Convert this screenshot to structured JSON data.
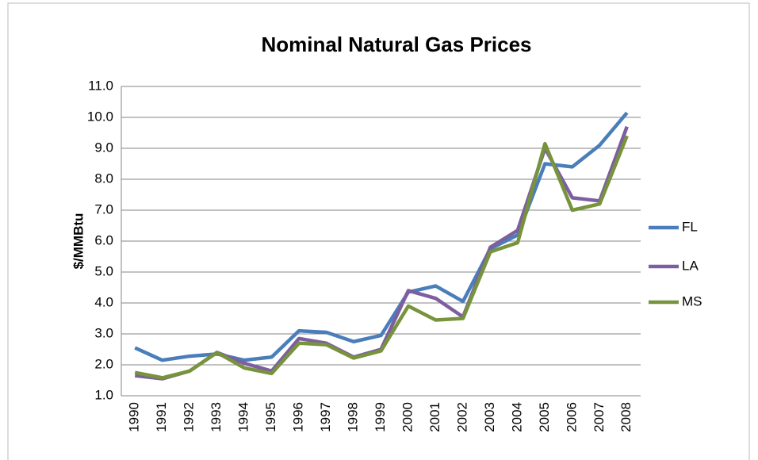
{
  "chart_data": {
    "type": "line",
    "title": "Nominal Natural Gas Prices",
    "y_label": "$/MMBtu",
    "categories": [
      "1990",
      "1991",
      "1992",
      "1993",
      "1994",
      "1995",
      "1996",
      "1997",
      "1998",
      "1999",
      "2000",
      "2001",
      "2002",
      "2003",
      "2004",
      "2005",
      "2006",
      "2007",
      "2008"
    ],
    "series": [
      {
        "name": "FL",
        "color": "#4a7ebb",
        "values": [
          2.55,
          2.15,
          2.28,
          2.35,
          2.15,
          2.25,
          3.1,
          3.05,
          2.75,
          2.95,
          4.35,
          4.55,
          4.05,
          5.75,
          6.2,
          8.5,
          8.4,
          9.1,
          10.15
        ]
      },
      {
        "name": "LA",
        "color": "#7d5fa0",
        "values": [
          1.65,
          1.55,
          1.8,
          2.4,
          2.05,
          1.8,
          2.85,
          2.7,
          2.25,
          2.5,
          4.4,
          4.15,
          3.55,
          5.8,
          6.35,
          9.0,
          7.4,
          7.3,
          9.7
        ]
      },
      {
        "name": "MS",
        "color": "#77933c",
        "values": [
          1.75,
          1.58,
          1.8,
          2.4,
          1.9,
          1.72,
          2.7,
          2.65,
          2.22,
          2.45,
          3.9,
          3.45,
          3.5,
          5.65,
          5.95,
          9.15,
          7.0,
          7.2,
          9.4
        ]
      }
    ],
    "ylim": [
      1,
      11
    ],
    "yticks": [
      {
        "value": 1,
        "label": "1.0"
      },
      {
        "value": 2,
        "label": "2.0"
      },
      {
        "value": 3,
        "label": "3.0"
      },
      {
        "value": 4,
        "label": "4.0"
      },
      {
        "value": 5,
        "label": "5.0"
      },
      {
        "value": 6,
        "label": "6.0"
      },
      {
        "value": 7,
        "label": "7.0"
      },
      {
        "value": 8,
        "label": "8.0"
      },
      {
        "value": 9,
        "label": "9.0"
      },
      {
        "value": 10,
        "label": "10.0"
      },
      {
        "value": 11,
        "label": "11.0"
      }
    ],
    "grid": true,
    "legend": "right"
  }
}
